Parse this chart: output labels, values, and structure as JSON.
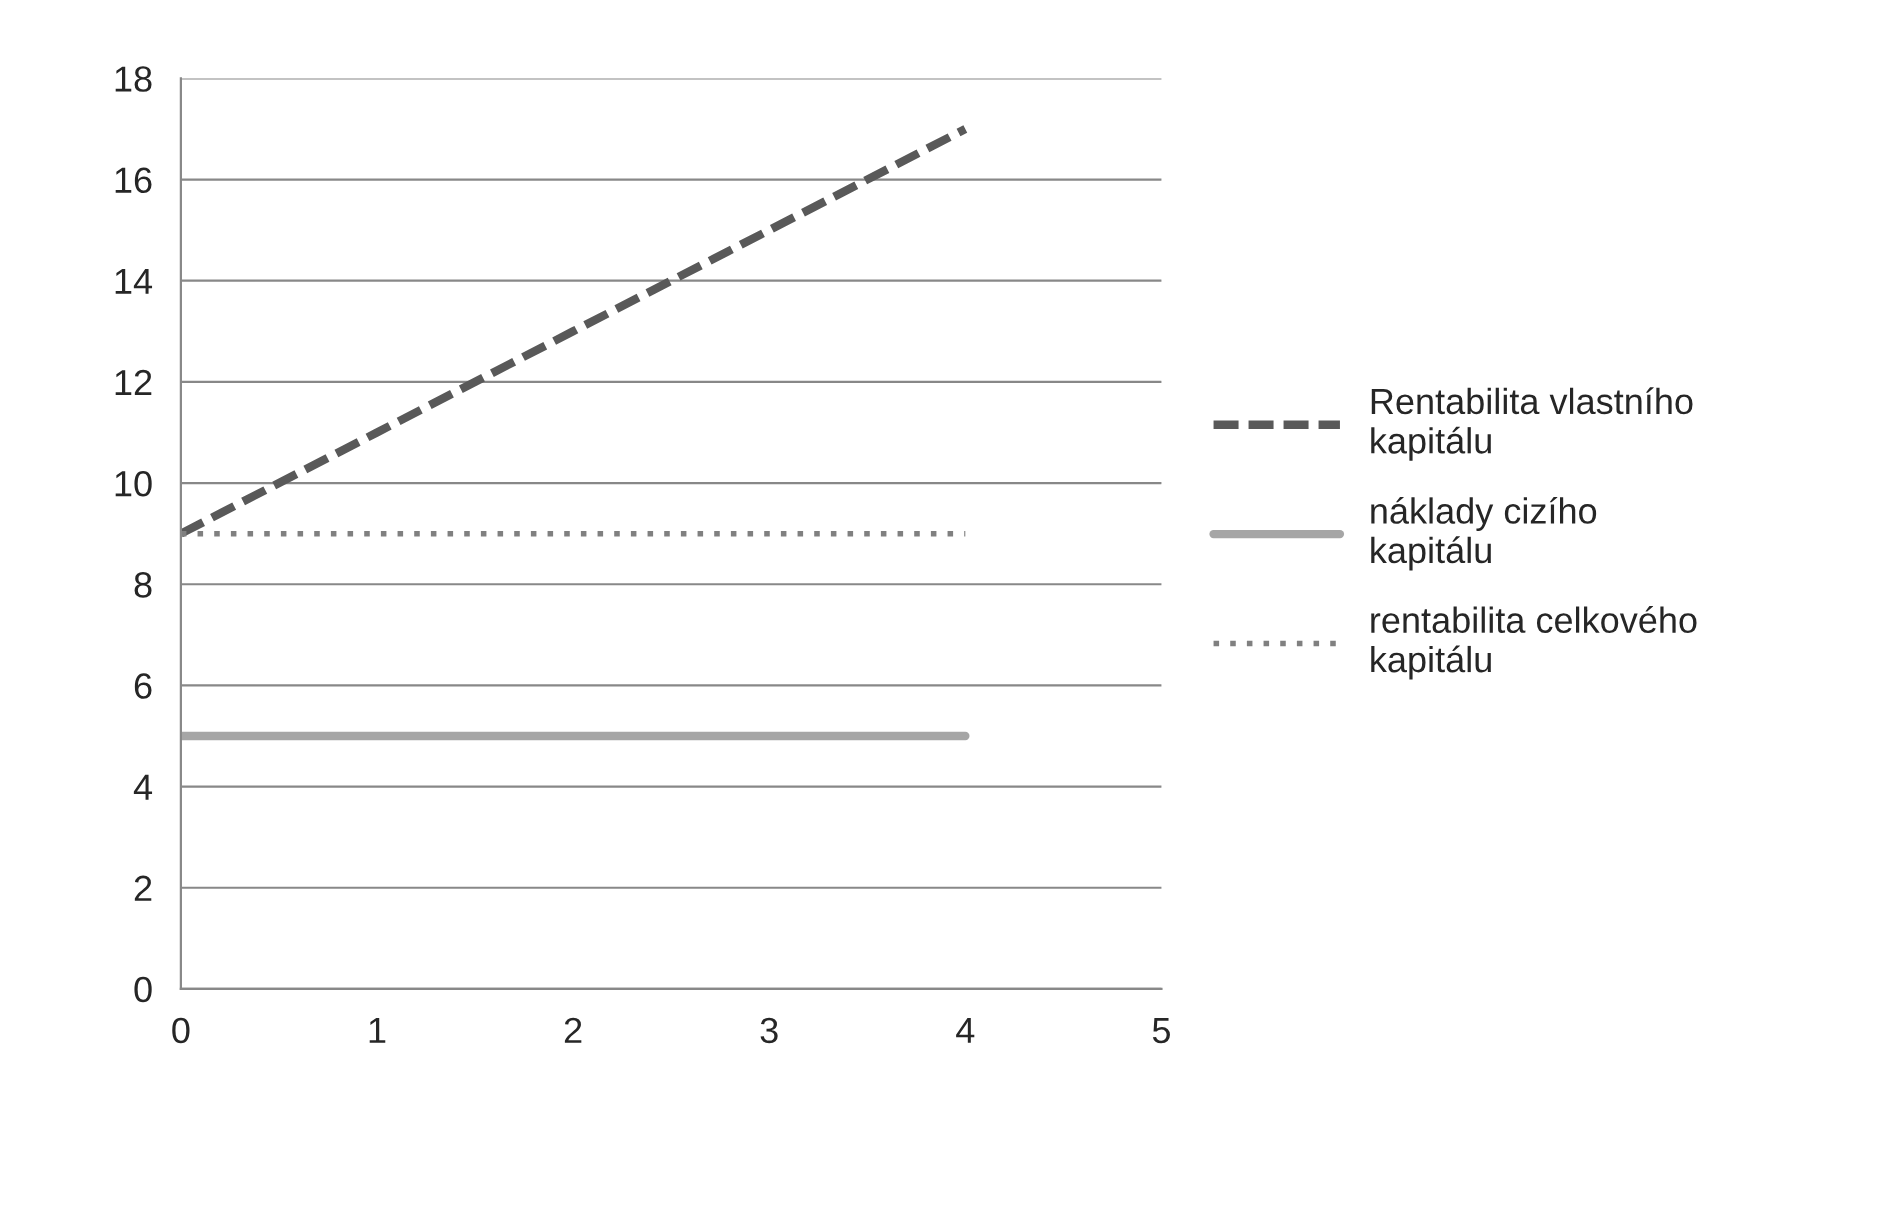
{
  "chart_data": {
    "type": "line",
    "x": [
      0,
      1,
      2,
      3,
      4
    ],
    "series": [
      {
        "name": "Rentabilita vlastního kapitálu",
        "color": "#595959",
        "values": [
          9,
          11,
          13,
          15,
          17
        ],
        "line_style": "dashed"
      },
      {
        "name": "náklady cizího kapitálu",
        "color": "#a6a6a6",
        "values": [
          5,
          5,
          5,
          5,
          5
        ],
        "line_style": "solid"
      },
      {
        "name": "rentabilita celkového kapitálu",
        "color": "#808080",
        "values": [
          9,
          9,
          9,
          9,
          9
        ],
        "line_style": "dotted"
      }
    ],
    "xlim": [
      0,
      5
    ],
    "xticks": [
      0,
      1,
      2,
      3,
      4,
      5
    ],
    "ylim": [
      0,
      18
    ],
    "yticks": [
      0,
      2,
      4,
      6,
      8,
      10,
      12,
      14,
      16,
      18
    ],
    "grid": "y",
    "legend": "right",
    "marker": "none"
  }
}
